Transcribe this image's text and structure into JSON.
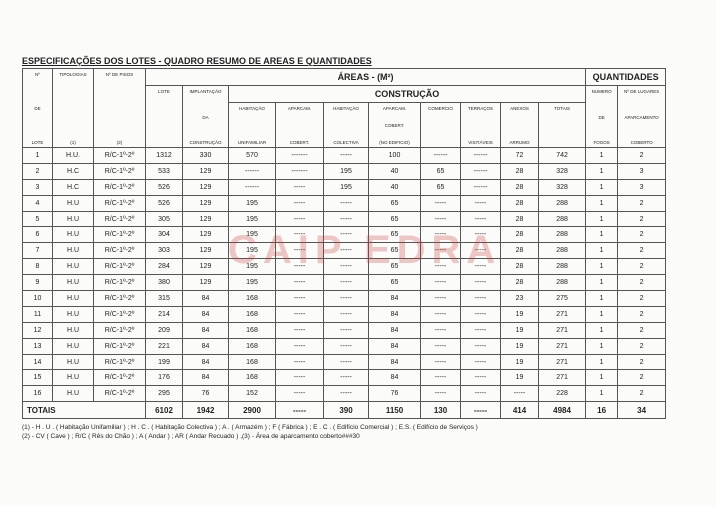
{
  "title": "ESPECIFICAÇÕES DOS LOTES - QUADRO RESUMO DE AREAS E QUANTIDADES",
  "table": {
    "group_headers": {
      "areas": "ÁREAS - (M²)",
      "quantidades": "QUANTIDADES",
      "construcao": "CONSTRUÇÃO"
    },
    "columns": [
      [
        "Nº",
        "DE",
        "LOTE"
      ],
      [
        "TIPOLOGIAS",
        "(1)"
      ],
      [
        "Nº DE PISOS",
        "(2)"
      ],
      [
        "LOTE"
      ],
      [
        "IMPLANTAÇÃO",
        "DA",
        "CONSTRUÇÃO"
      ],
      [
        "HABITAÇÃO",
        "UNIFAMILIAR"
      ],
      [
        "APARCAM.",
        "COBERT."
      ],
      [
        "HABITAÇÃO",
        "COLECTIVA"
      ],
      [
        "APARCAM.",
        "COBERT.",
        "(NO EDIFICIO)"
      ],
      [
        "COMERCIO"
      ],
      [
        "TERRAÇOS",
        "VISITÁVEIS"
      ],
      [
        "ANEXOS",
        "ARRUMO"
      ],
      [
        "TOTAIS"
      ],
      [
        "NUMERO",
        "DE",
        "FOGOS"
      ],
      [
        "Nº DE LUGARES",
        "APARCAMENTO",
        "COBERTO"
      ]
    ],
    "rows": [
      [
        1,
        "H.U.",
        "R/C-1º-2º",
        1312,
        330,
        570,
        "-------",
        "-----",
        100,
        "------",
        "------",
        72,
        742,
        1,
        2
      ],
      [
        2,
        "H.C",
        "R/C-1º-2º",
        533,
        129,
        "------",
        "-------",
        195,
        40,
        65,
        "------",
        28,
        328,
        1,
        3
      ],
      [
        3,
        "H.C",
        "R/C-1º-2º",
        526,
        129,
        "------",
        "-----",
        195,
        40,
        65,
        "------",
        28,
        328,
        1,
        3
      ],
      [
        4,
        "H.U",
        "R/C-1º-2º",
        526,
        129,
        195,
        "-----",
        "-----",
        65,
        "-----",
        "-----",
        28,
        288,
        1,
        2
      ],
      [
        5,
        "H.U",
        "R/C-1º-2º",
        305,
        129,
        195,
        "-----",
        "-----",
        65,
        "-----",
        "-----",
        28,
        288,
        1,
        2
      ],
      [
        6,
        "H.U",
        "R/C-1º-2º",
        304,
        129,
        195,
        "-----",
        "-----",
        65,
        "-----",
        "-----",
        28,
        288,
        1,
        2
      ],
      [
        7,
        "H.U",
        "R/C-1º-2º",
        303,
        129,
        195,
        "-----",
        "-----",
        65,
        "-----",
        "-----",
        28,
        288,
        1,
        2
      ],
      [
        8,
        "H.U",
        "R/C-1º-2º",
        284,
        129,
        195,
        "-----",
        "-----",
        65,
        "-----",
        "-----",
        28,
        288,
        1,
        2
      ],
      [
        9,
        "H.U",
        "R/C-1º-2º",
        380,
        129,
        195,
        "-----",
        "-----",
        65,
        "-----",
        "-----",
        28,
        288,
        1,
        2
      ],
      [
        10,
        "H.U",
        "R/C-1º-2º",
        315,
        84,
        168,
        "-----",
        "-----",
        84,
        "-----",
        "-----",
        23,
        275,
        1,
        2
      ],
      [
        11,
        "H.U",
        "R/C-1º-2º",
        214,
        84,
        168,
        "-----",
        "-----",
        84,
        "-----",
        "-----",
        19,
        271,
        1,
        2
      ],
      [
        12,
        "H.U",
        "R/C-1º-2º",
        209,
        84,
        168,
        "-----",
        "-----",
        84,
        "-----",
        "-----",
        19,
        271,
        1,
        2
      ],
      [
        13,
        "H.U",
        "R/C-1º-2º",
        221,
        84,
        168,
        "-----",
        "-----",
        84,
        "-----",
        "-----",
        19,
        271,
        1,
        2
      ],
      [
        14,
        "H.U",
        "R/C-1º-2º",
        199,
        84,
        168,
        "-----",
        "-----",
        84,
        "-----",
        "-----",
        19,
        271,
        1,
        2
      ],
      [
        15,
        "H.U",
        "R/C-1º-2º",
        176,
        84,
        168,
        "-----",
        "-----",
        84,
        "-----",
        "-----",
        19,
        271,
        1,
        2
      ],
      [
        16,
        "H.U",
        "R/C-1º-2º",
        295,
        76,
        152,
        "-----",
        "-----",
        76,
        "-----",
        "-----",
        "-----",
        228,
        1,
        2
      ]
    ],
    "totals": [
      "TOTAIS",
      6102,
      1942,
      2900,
      "-----",
      390,
      1150,
      130,
      "-----",
      414,
      4984,
      16,
      34
    ]
  },
  "footnotes": [
    "(1) - H . U . ( Habitação Unifamiliar ) ; H . C . ( Habitação Colectiva ) ; A . ( Armazém ) ; F ( Fábrica ) ; E . C . ( Edifício Comercial ) ; E.S. ( Edifício de Serviços )",
    "(2) - CV ( Cave ) ; R/C ( Rês do Chão ) ; A ( Andar ) ; AR ( Andar Recuado ) ,(3) - Área de aparcamento coberto###30"
  ],
  "watermark": "CAIP EDRA"
}
